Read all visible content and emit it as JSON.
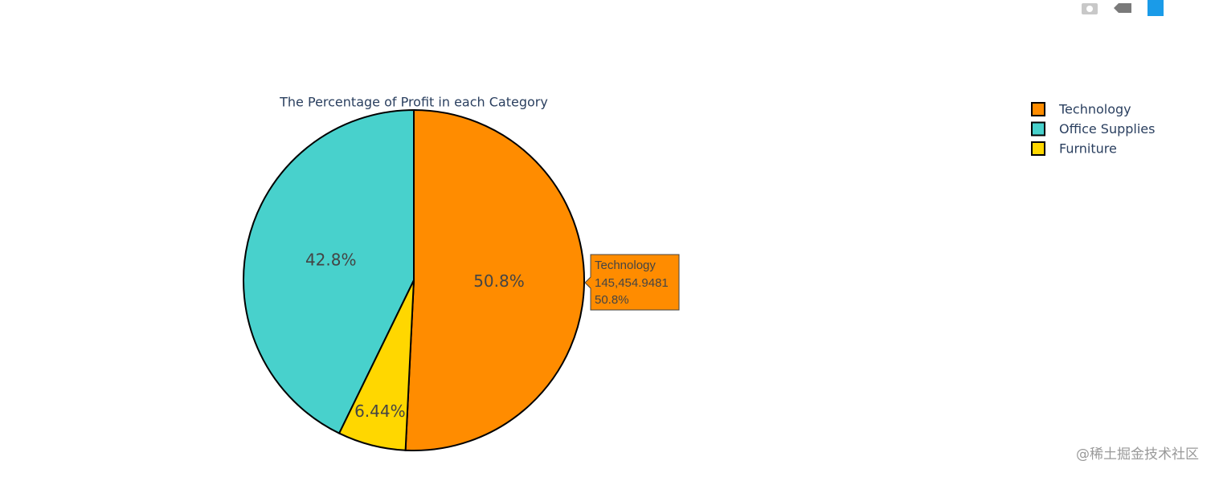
{
  "chart_data": {
    "type": "pie",
    "title": "The Percentage of Profit in each Category",
    "categories": [
      "Technology",
      "Office Supplies",
      "Furniture"
    ],
    "values": [
      50.8,
      42.8,
      6.44
    ],
    "value_labels": [
      "50.8%",
      "42.8%",
      "6.44%"
    ],
    "colors": [
      "#ff8c00",
      "#48d1cc",
      "#ffd700"
    ],
    "direction": "counterclockwise",
    "legend": "top-right",
    "hover": {
      "index": 0,
      "profit": {
        "value": 145454.9481,
        "label": "145,454.9481"
      }
    }
  },
  "watermark": "@稀土掘金技术社区"
}
